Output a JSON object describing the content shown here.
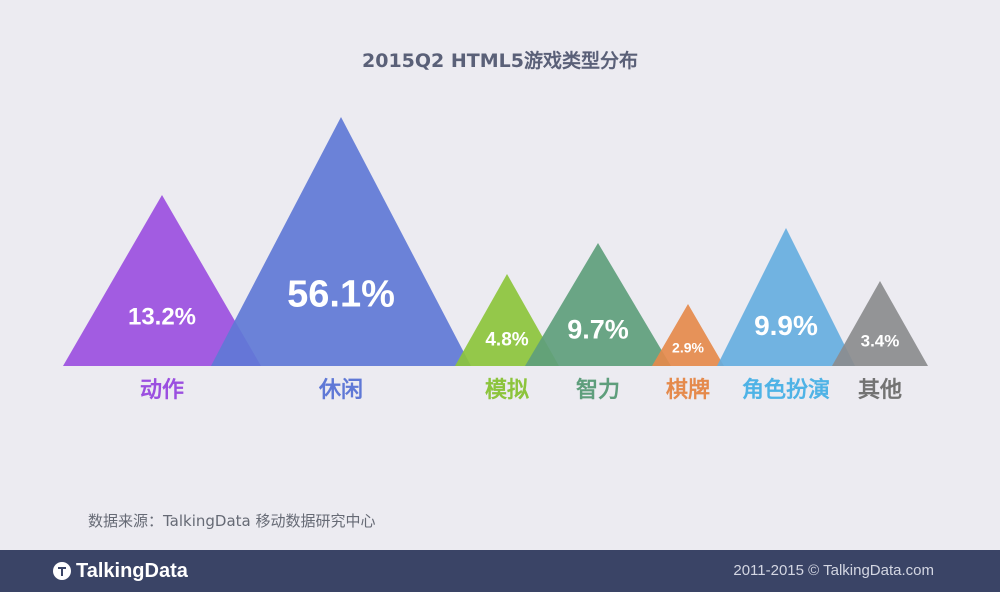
{
  "chart_data": {
    "type": "triangle",
    "title": "2015Q2 HTML5游戏类型分布",
    "categories": [
      "动作",
      "休闲",
      "模拟",
      "智力",
      "棋牌",
      "角色扮演",
      "其他"
    ],
    "values": [
      13.2,
      56.1,
      4.8,
      9.7,
      2.9,
      9.9,
      3.4
    ],
    "value_labels": [
      "13.2%",
      "56.1%",
      "4.8%",
      "9.7%",
      "2.9%",
      "9.9%",
      "3.4%"
    ],
    "unit": "%",
    "colors": [
      "#9b4fe0",
      "#5f78d6",
      "#8cc43c",
      "#5e9e7c",
      "#e58a4c",
      "#66aee0",
      "#8b8c8e"
    ],
    "label_colors": [
      "#9b4fe0",
      "#5f78d6",
      "#8cc43c",
      "#5e9e7c",
      "#e58a4c",
      "#4fb3e6",
      "#737373"
    ]
  },
  "source_note": "数据来源：TalkingData 移动数据研究中心",
  "footer": {
    "brand": "TalkingData",
    "copyright": "2011-2015 © TalkingData.com"
  }
}
